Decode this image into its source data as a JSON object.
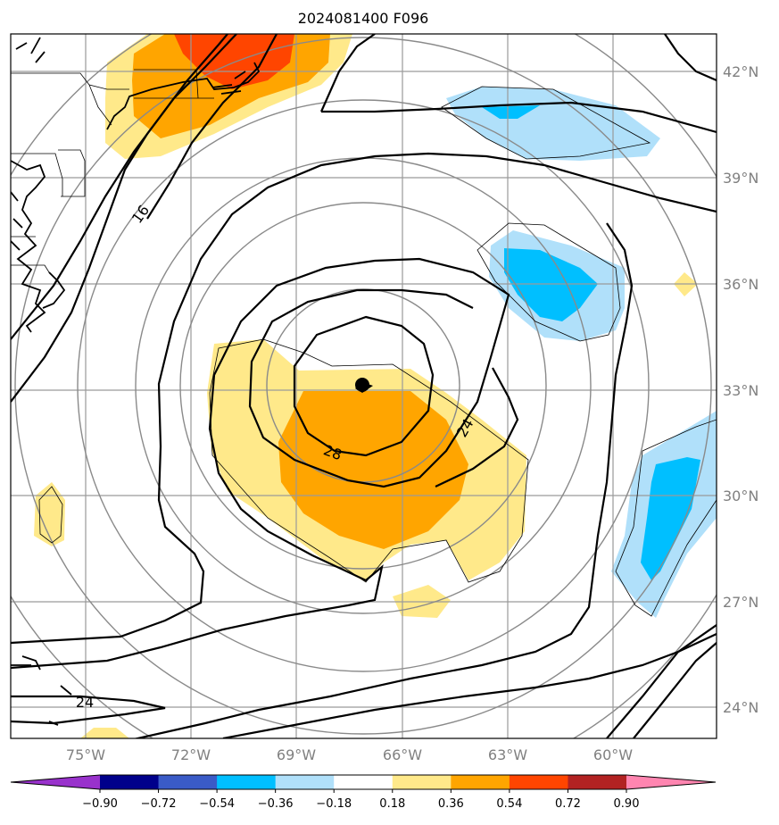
{
  "title": "2024081400 F096",
  "map": {
    "lon_labels": [
      "75°W",
      "72°W",
      "69°W",
      "66°W",
      "63°W",
      "60°W"
    ],
    "lat_labels": [
      "42°N",
      "39°N",
      "36°N",
      "33°N",
      "30°N",
      "27°N",
      "24°N"
    ],
    "contour_labels": [
      "16",
      "24",
      "28",
      "24"
    ],
    "grid": true
  },
  "colorbar": {
    "ticks": [
      "−0.90",
      "−0.72",
      "−0.54",
      "−0.36",
      "−0.18",
      "0.18",
      "0.36",
      "0.54",
      "0.72",
      "0.90"
    ],
    "colors": [
      "#9932cc",
      "#00008b",
      "#3a5bc7",
      "#00bfff",
      "#b0e0fa",
      "#ffffff",
      "#ffe98a",
      "#ffa500",
      "#ff4500",
      "#b22222",
      "#ff85b0"
    ]
  }
}
